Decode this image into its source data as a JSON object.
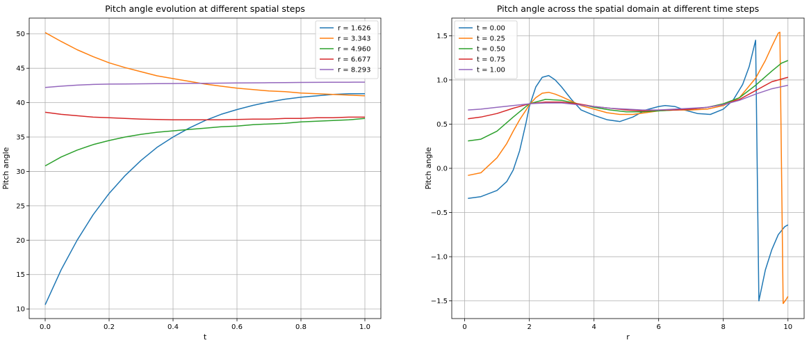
{
  "chart_data": [
    {
      "type": "line",
      "title": "Pitch angle evolution at different spatial steps",
      "xlabel": "t",
      "ylabel": "Pitch angle",
      "xlim": [
        -0.05,
        1.05
      ],
      "ylim": [
        8.6,
        52.3
      ],
      "xticks": [
        0.0,
        0.2,
        0.4,
        0.6,
        0.8,
        1.0
      ],
      "xtick_labels": [
        "0.0",
        "0.2",
        "0.4",
        "0.6",
        "0.8",
        "1.0"
      ],
      "yticks": [
        10,
        15,
        20,
        25,
        30,
        35,
        40,
        45,
        50
      ],
      "ytick_labels": [
        "10",
        "15",
        "20",
        "25",
        "30",
        "35",
        "40",
        "45",
        "50"
      ],
      "grid": true,
      "legend_position": "top-right",
      "series": [
        {
          "name": "r = 1.626",
          "color": "#1f77b4",
          "x": [
            0,
            0.05,
            0.1,
            0.15,
            0.2,
            0.25,
            0.3,
            0.35,
            0.4,
            0.45,
            0.5,
            0.55,
            0.6,
            0.65,
            0.7,
            0.75,
            0.8,
            0.85,
            0.9,
            0.95,
            1.0
          ],
          "y": [
            10.6,
            15.7,
            20.0,
            23.7,
            26.8,
            29.4,
            31.6,
            33.5,
            35.0,
            36.3,
            37.4,
            38.3,
            39.0,
            39.6,
            40.1,
            40.5,
            40.8,
            41.0,
            41.2,
            41.3,
            41.3
          ]
        },
        {
          "name": "r = 3.343",
          "color": "#ff7f0e",
          "x": [
            0,
            0.05,
            0.1,
            0.15,
            0.2,
            0.25,
            0.3,
            0.35,
            0.4,
            0.45,
            0.5,
            0.55,
            0.6,
            0.65,
            0.7,
            0.75,
            0.8,
            0.85,
            0.9,
            0.95,
            1.0
          ],
          "y": [
            50.2,
            48.9,
            47.7,
            46.7,
            45.8,
            45.1,
            44.5,
            43.9,
            43.5,
            43.1,
            42.7,
            42.4,
            42.1,
            41.9,
            41.7,
            41.6,
            41.4,
            41.3,
            41.2,
            41.1,
            41.0
          ]
        },
        {
          "name": "r = 4.960",
          "color": "#2ca02c",
          "x": [
            0,
            0.05,
            0.1,
            0.15,
            0.2,
            0.25,
            0.3,
            0.35,
            0.4,
            0.45,
            0.5,
            0.55,
            0.6,
            0.65,
            0.7,
            0.75,
            0.8,
            0.85,
            0.9,
            0.95,
            1.0
          ],
          "y": [
            30.8,
            32.1,
            33.1,
            33.9,
            34.5,
            35.0,
            35.4,
            35.7,
            35.9,
            36.1,
            36.3,
            36.5,
            36.6,
            36.8,
            36.9,
            37.0,
            37.2,
            37.3,
            37.4,
            37.5,
            37.7
          ]
        },
        {
          "name": "r = 6.677",
          "color": "#d62728",
          "x": [
            0,
            0.05,
            0.1,
            0.15,
            0.2,
            0.25,
            0.3,
            0.35,
            0.4,
            0.45,
            0.5,
            0.55,
            0.6,
            0.65,
            0.7,
            0.75,
            0.8,
            0.85,
            0.9,
            0.95,
            1.0
          ],
          "y": [
            38.6,
            38.3,
            38.1,
            37.9,
            37.8,
            37.7,
            37.6,
            37.55,
            37.5,
            37.5,
            37.5,
            37.5,
            37.55,
            37.6,
            37.6,
            37.7,
            37.7,
            37.8,
            37.8,
            37.9,
            37.9
          ]
        },
        {
          "name": "r = 8.293",
          "color": "#9467bd",
          "x": [
            0,
            0.05,
            0.1,
            0.15,
            0.2,
            0.25,
            0.3,
            0.35,
            0.4,
            0.45,
            0.5,
            0.55,
            0.6,
            0.65,
            0.7,
            0.75,
            0.8,
            0.85,
            0.9,
            0.95,
            1.0
          ],
          "y": [
            42.2,
            42.4,
            42.55,
            42.65,
            42.7,
            42.72,
            42.74,
            42.76,
            42.78,
            42.8,
            42.82,
            42.84,
            42.86,
            42.88,
            42.9,
            42.92,
            42.94,
            42.95,
            42.96,
            42.97,
            42.98
          ]
        }
      ]
    },
    {
      "type": "line",
      "title": "Pitch angle across the spatial domain at different time steps",
      "xlabel": "r",
      "ylabel": "Pitch angle",
      "xlim": [
        -0.4,
        10.5
      ],
      "ylim": [
        -1.7,
        1.7
      ],
      "xticks": [
        0,
        2,
        4,
        6,
        8,
        10
      ],
      "xtick_labels": [
        "0",
        "2",
        "4",
        "6",
        "8",
        "10"
      ],
      "yticks": [
        -1.5,
        -1.0,
        -0.5,
        0.0,
        0.5,
        1.0,
        1.5
      ],
      "ytick_labels": [
        "−1.5",
        "−1.0",
        "−0.5",
        "0.0",
        "0.5",
        "1.0",
        "1.5"
      ],
      "grid": true,
      "legend_position": "top-left",
      "series": [
        {
          "name": "t = 0.00",
          "color": "#1f77b4",
          "x": [
            0.1,
            0.5,
            1.0,
            1.3,
            1.5,
            1.7,
            1.9,
            2.0,
            2.2,
            2.4,
            2.6,
            2.8,
            3.0,
            3.3,
            3.6,
            4.0,
            4.4,
            4.8,
            5.2,
            5.6,
            6.0,
            6.2,
            6.5,
            6.8,
            7.2,
            7.6,
            8.0,
            8.3,
            8.6,
            8.8,
            9.0,
            9.1,
            9.3,
            9.5,
            9.7,
            9.9,
            10.0
          ],
          "y": [
            -0.34,
            -0.32,
            -0.25,
            -0.15,
            -0.02,
            0.2,
            0.52,
            0.7,
            0.92,
            1.03,
            1.05,
            1.0,
            0.92,
            0.78,
            0.66,
            0.6,
            0.55,
            0.53,
            0.58,
            0.66,
            0.7,
            0.71,
            0.7,
            0.66,
            0.62,
            0.61,
            0.67,
            0.77,
            0.95,
            1.15,
            1.45,
            -1.5,
            -1.15,
            -0.92,
            -0.75,
            -0.66,
            -0.64
          ]
        },
        {
          "name": "t = 0.25",
          "color": "#ff7f0e",
          "x": [
            0.1,
            0.5,
            1.0,
            1.3,
            1.5,
            1.7,
            1.9,
            2.0,
            2.2,
            2.4,
            2.6,
            2.8,
            3.0,
            3.3,
            3.6,
            4.0,
            4.4,
            4.8,
            5.2,
            5.6,
            6.0,
            6.5,
            7.0,
            7.5,
            8.0,
            8.5,
            9.0,
            9.3,
            9.5,
            9.7,
            9.75,
            9.85,
            9.95,
            10.0
          ],
          "y": [
            -0.08,
            -0.05,
            0.12,
            0.28,
            0.42,
            0.55,
            0.66,
            0.72,
            0.8,
            0.85,
            0.86,
            0.84,
            0.81,
            0.76,
            0.71,
            0.67,
            0.63,
            0.61,
            0.61,
            0.63,
            0.65,
            0.66,
            0.66,
            0.67,
            0.71,
            0.8,
            1.02,
            1.22,
            1.38,
            1.53,
            1.54,
            -1.53,
            -1.48,
            -1.45
          ]
        },
        {
          "name": "t = 0.50",
          "color": "#2ca02c",
          "x": [
            0.1,
            0.5,
            1.0,
            1.5,
            2.0,
            2.5,
            3.0,
            3.5,
            4.0,
            4.5,
            5.0,
            5.5,
            6.0,
            6.5,
            7.0,
            7.5,
            8.0,
            8.5,
            9.0,
            9.5,
            9.8,
            10.0
          ],
          "y": [
            0.31,
            0.33,
            0.42,
            0.58,
            0.73,
            0.78,
            0.77,
            0.73,
            0.69,
            0.66,
            0.64,
            0.64,
            0.65,
            0.66,
            0.67,
            0.69,
            0.73,
            0.8,
            0.94,
            1.1,
            1.19,
            1.22
          ]
        },
        {
          "name": "t = 0.75",
          "color": "#d62728",
          "x": [
            0.1,
            0.5,
            1.0,
            1.5,
            2.0,
            2.5,
            3.0,
            3.5,
            4.0,
            4.5,
            5.0,
            5.5,
            6.0,
            6.5,
            7.0,
            7.5,
            8.0,
            8.5,
            9.0,
            9.5,
            10.0
          ],
          "y": [
            0.56,
            0.58,
            0.62,
            0.68,
            0.73,
            0.75,
            0.75,
            0.73,
            0.7,
            0.68,
            0.66,
            0.65,
            0.66,
            0.66,
            0.67,
            0.69,
            0.72,
            0.78,
            0.88,
            0.98,
            1.03
          ]
        },
        {
          "name": "t = 1.00",
          "color": "#9467bd",
          "x": [
            0.1,
            0.5,
            1.0,
            1.5,
            2.0,
            2.5,
            3.0,
            3.5,
            4.0,
            4.5,
            5.0,
            5.5,
            6.0,
            6.5,
            7.0,
            7.5,
            8.0,
            8.5,
            9.0,
            9.5,
            10.0
          ],
          "y": [
            0.66,
            0.67,
            0.69,
            0.71,
            0.73,
            0.74,
            0.74,
            0.72,
            0.7,
            0.68,
            0.67,
            0.66,
            0.66,
            0.67,
            0.68,
            0.69,
            0.72,
            0.77,
            0.84,
            0.9,
            0.94
          ]
        }
      ]
    }
  ]
}
